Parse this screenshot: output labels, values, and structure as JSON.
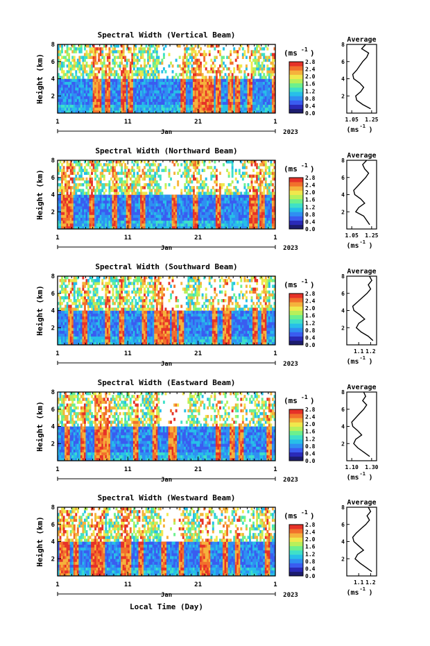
{
  "figure": {
    "xlabel": "Local Time (Day)",
    "month": "Jan",
    "year": "2023"
  },
  "colormap": [
    "#1c1c6e",
    "#2a2ab8",
    "#3a5cf0",
    "#2f8ff2",
    "#27bfe8",
    "#3fe0c8",
    "#6cf08e",
    "#b8f05a",
    "#f0e84c",
    "#f5b23c",
    "#f2702c",
    "#e63228"
  ],
  "chart_data": [
    {
      "type": "heatmap",
      "title": "Spectral Width (Vertical Beam)",
      "ylabel": "Height (km)",
      "unit_label": "(ms",
      "unit_sup": "-1",
      "ylim": [
        0,
        8
      ],
      "yticks": [
        "2",
        "4",
        "6",
        "8"
      ],
      "xlim": [
        1,
        32
      ],
      "xticks": [
        "1",
        "11",
        "21",
        "1"
      ],
      "colorbar_ticks": [
        "0.0",
        "0.4",
        "0.8",
        "1.2",
        "1.6",
        "2.0",
        "2.4",
        "2.8"
      ],
      "profile": {
        "title": "Average",
        "xlabel": "(ms",
        "xlabel_sup": "-1",
        "xticks": [
          "1.05",
          "1.25"
        ],
        "xlim": [
          1.0,
          1.3
        ],
        "heights": [
          0.5,
          1,
          1.5,
          2,
          2.5,
          3,
          3.5,
          4,
          4.5,
          5,
          5.5,
          6,
          6.5,
          7,
          7.5,
          8
        ],
        "values": [
          1.24,
          1.16,
          1.1,
          1.09,
          1.14,
          1.17,
          1.13,
          1.07,
          1.06,
          1.1,
          1.13,
          1.16,
          1.2,
          1.22,
          1.15,
          1.19
        ]
      }
    },
    {
      "type": "heatmap",
      "title": "Spectral Width (Northward Beam)",
      "ylabel": "Height (km)",
      "unit_label": "(ms",
      "unit_sup": "-1",
      "ylim": [
        0,
        8
      ],
      "yticks": [
        "2",
        "4",
        "6",
        "8"
      ],
      "xlim": [
        1,
        32
      ],
      "xticks": [
        "1",
        "11",
        "21",
        "1"
      ],
      "colorbar_ticks": [
        "0.0",
        "0.4",
        "0.8",
        "1.2",
        "1.6",
        "2.0",
        "2.4",
        "2.8"
      ],
      "profile": {
        "title": "Average",
        "xlabel": "(ms",
        "xlabel_sup": "-1",
        "xticks": [
          "1.05",
          "1.25"
        ],
        "xlim": [
          1.0,
          1.3
        ],
        "heights": [
          0.5,
          1,
          1.5,
          2,
          2.5,
          3,
          3.5,
          4,
          4.5,
          5,
          5.5,
          6,
          6.5,
          7,
          7.5,
          8
        ],
        "values": [
          1.23,
          1.2,
          1.17,
          1.09,
          1.12,
          1.18,
          1.14,
          1.08,
          1.07,
          1.11,
          1.15,
          1.19,
          1.22,
          1.18,
          1.16,
          1.2
        ]
      }
    },
    {
      "type": "heatmap",
      "title": "Spectral Width (Southward Beam)",
      "ylabel": "Height (km)",
      "unit_label": "(ms",
      "unit_sup": "-1",
      "ylim": [
        0,
        8
      ],
      "yticks": [
        "2",
        "4",
        "6",
        "8"
      ],
      "xlim": [
        1,
        32
      ],
      "xticks": [
        "1",
        "11",
        "21",
        "1"
      ],
      "colorbar_ticks": [
        "0.0",
        "0.4",
        "0.8",
        "1.2",
        "1.6",
        "2.0",
        "2.4",
        "2.8"
      ],
      "profile": {
        "title": "Average",
        "xlabel": "(ms",
        "xlabel_sup": "-1",
        "xticks": [
          "1.1",
          "1.2"
        ],
        "xlim": [
          1.0,
          1.25
        ],
        "heights": [
          0.5,
          1,
          1.5,
          2,
          2.5,
          3,
          3.5,
          4,
          4.5,
          5,
          5.5,
          6,
          6.5,
          7,
          7.5,
          8
        ],
        "values": [
          1.22,
          1.18,
          1.12,
          1.08,
          1.1,
          1.15,
          1.11,
          1.06,
          1.05,
          1.09,
          1.13,
          1.17,
          1.2,
          1.18,
          1.21,
          1.19
        ]
      }
    },
    {
      "type": "heatmap",
      "title": "Spectral Width (Eastward Beam)",
      "ylabel": "Height (km)",
      "unit_label": "(ms",
      "unit_sup": "-1",
      "ylim": [
        0,
        8
      ],
      "yticks": [
        "2",
        "4",
        "6",
        "8"
      ],
      "xlim": [
        1,
        32
      ],
      "xticks": [
        "1",
        "11",
        "21",
        "1"
      ],
      "colorbar_ticks": [
        "0.0",
        "0.4",
        "0.8",
        "1.2",
        "1.6",
        "2.0",
        "2.4",
        "2.8"
      ],
      "profile": {
        "title": "Average",
        "xlabel": "(ms",
        "xlabel_sup": "-1",
        "xticks": [
          "1.10",
          "1.30"
        ],
        "xlim": [
          1.05,
          1.35
        ],
        "heights": [
          0.5,
          1,
          1.5,
          2,
          2.5,
          3,
          3.5,
          4,
          4.5,
          5,
          5.5,
          6,
          6.5,
          7,
          7.5,
          8
        ],
        "values": [
          1.28,
          1.22,
          1.16,
          1.12,
          1.14,
          1.2,
          1.16,
          1.11,
          1.1,
          1.14,
          1.18,
          1.22,
          1.25,
          1.21,
          1.24,
          1.22
        ]
      }
    },
    {
      "type": "heatmap",
      "title": "Spectral Width (Westward Beam)",
      "ylabel": "Height (km)",
      "unit_label": "(ms",
      "unit_sup": "-1",
      "ylim": [
        0,
        8
      ],
      "yticks": [
        "2",
        "4",
        "6",
        "8"
      ],
      "xlim": [
        1,
        32
      ],
      "xticks": [
        "1",
        "11",
        "21",
        "1"
      ],
      "colorbar_ticks": [
        "0.0",
        "0.4",
        "0.8",
        "1.2",
        "1.6",
        "2.0",
        "2.4",
        "2.8"
      ],
      "profile": {
        "title": "Average",
        "xlabel": "(ms",
        "xlabel_sup": "-1",
        "xticks": [
          "1.1",
          "1.2"
        ],
        "xlim": [
          1.0,
          1.25
        ],
        "heights": [
          0.5,
          1,
          1.5,
          2,
          2.5,
          3,
          3.5,
          4,
          4.5,
          5,
          5.5,
          6,
          6.5,
          7,
          7.5,
          8
        ],
        "values": [
          1.21,
          1.16,
          1.11,
          1.07,
          1.09,
          1.14,
          1.1,
          1.06,
          1.05,
          1.08,
          1.12,
          1.16,
          1.19,
          1.17,
          1.2,
          1.18
        ]
      }
    }
  ]
}
